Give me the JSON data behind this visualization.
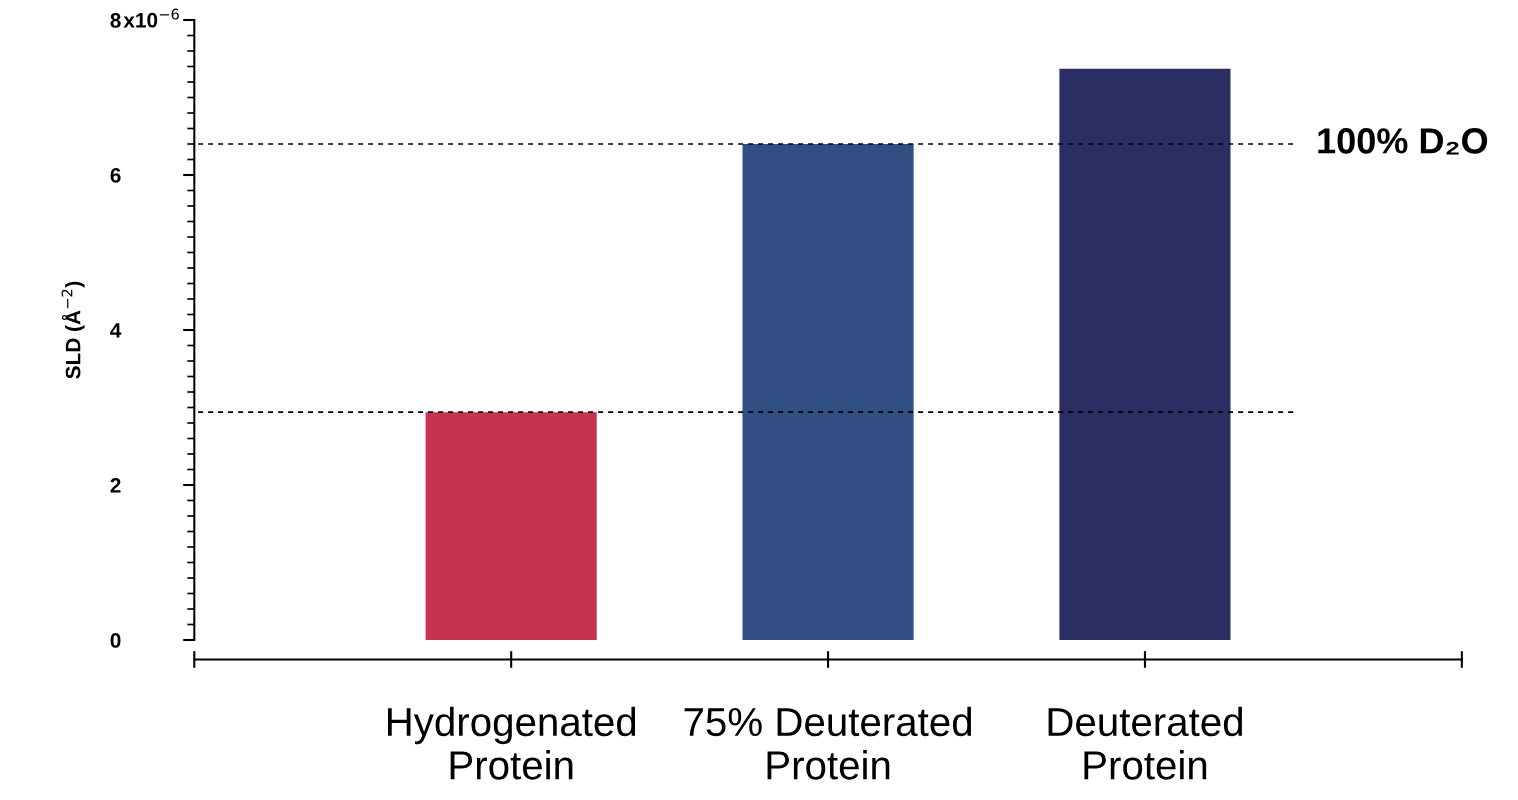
{
  "chart_data": {
    "type": "bar",
    "ylabel": "SLD (Å$^{−2}$)",
    "categories": [
      "Hydrogenated\nProtein",
      "75% Deuterated\nProtein",
      "Deuterated\nProtein"
    ],
    "values": [
      2.94,
      6.4,
      7.37
    ],
    "colors": [
      "#c5334f",
      "#324f84",
      "#2b2e63"
    ],
    "ylim": [
      0,
      8
    ],
    "yticks": [
      0,
      2,
      4,
      6,
      8
    ],
    "annotations": [
      "x10$^{−6}$"
    ],
    "ref_lines": [
      {
        "axis": "y",
        "value": 6.4,
        "label": "100% D₂O",
        "color": "#000000",
        "line_style": "dotted"
      },
      {
        "axis": "y",
        "value": 2.94,
        "color": "#000000",
        "line_style": "dotted"
      }
    ],
    "grid": false,
    "legend": false
  }
}
